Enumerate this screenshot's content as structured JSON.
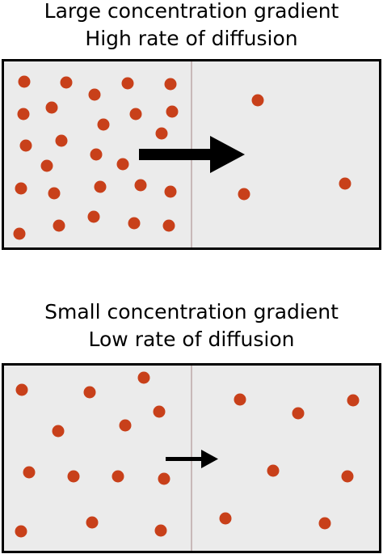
{
  "panels": [
    {
      "id": "large",
      "title_line1": "Large concentration gradient",
      "title_line2": "High rate of diffusion",
      "arrow": "large",
      "left_particle_count": 25,
      "right_particle_count": 3
    },
    {
      "id": "small",
      "title_line1": "Small concentration gradient",
      "title_line2": "Low rate of diffusion",
      "arrow": "small",
      "left_particle_count": 14,
      "right_particle_count": 8
    }
  ],
  "colors": {
    "particle": "#c8401a",
    "box_fill": "#ebebeb",
    "box_stroke": "#000000",
    "membrane": "#c8b8b8",
    "arrow": "#000000"
  }
}
